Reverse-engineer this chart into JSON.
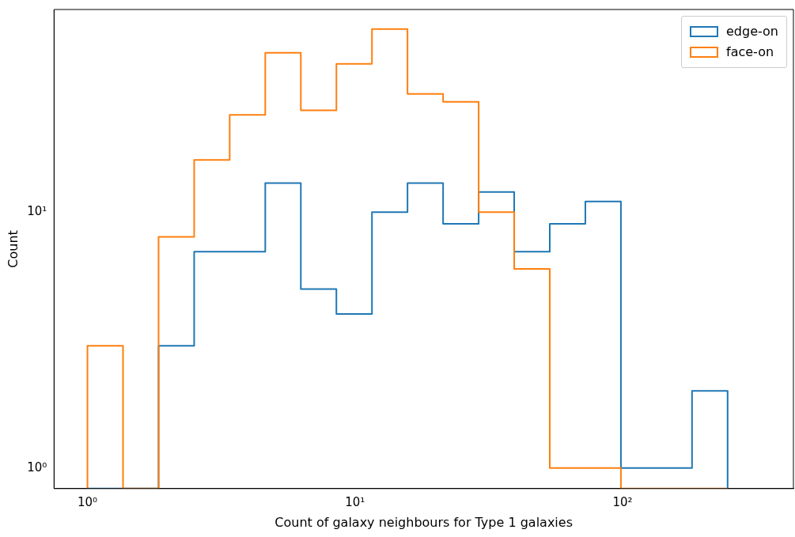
{
  "chart_data": {
    "type": "histogram",
    "xlabel": "Count of galaxy neighbours for Type 1 galaxies",
    "ylabel": "Count",
    "bins": [
      1,
      1.358,
      1.844,
      2.505,
      3.401,
      4.619,
      6.273,
      8.519,
      11.57,
      15.71,
      21.34,
      28.98,
      39.35,
      53.44,
      72.58,
      98.57,
      133.9,
      181.8,
      246.9
    ],
    "series": [
      {
        "name": "edge-on",
        "color": "#1f77b4",
        "values": [
          null,
          null,
          3,
          7,
          7,
          13,
          5,
          4,
          10,
          13,
          9,
          12,
          7,
          9,
          11,
          1,
          1,
          2
        ]
      },
      {
        "name": "face-on",
        "color": "#ff7f0e",
        "values": [
          3,
          null,
          8,
          16,
          24,
          42,
          25,
          38,
          52,
          29,
          27,
          10,
          6,
          1,
          1,
          null,
          null,
          null
        ]
      }
    ],
    "log": "xy",
    "xlim": [
      0.75,
      435
    ],
    "ylim": [
      0.83,
      62
    ],
    "xticks": [
      {
        "value": 1,
        "label": "10⁰"
      },
      {
        "value": 10,
        "label": "10¹"
      },
      {
        "value": 100,
        "label": "10²"
      }
    ],
    "yticks": [
      {
        "value": 1,
        "label": "10⁰"
      },
      {
        "value": 10,
        "label": "10¹"
      }
    ],
    "legend": "top right",
    "grid": false
  }
}
